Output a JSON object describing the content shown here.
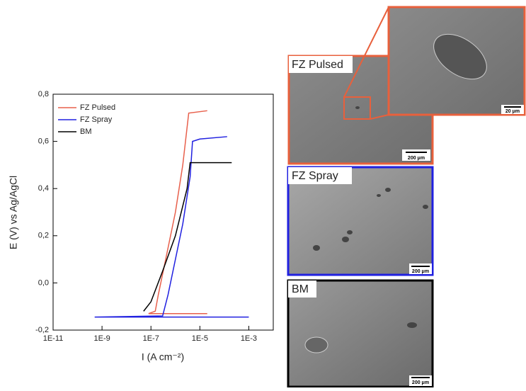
{
  "chart_data": {
    "type": "line",
    "xlabel": "I (A cm⁻²)",
    "ylabel": "E (V) vs Ag/AgCl",
    "xscale": "log",
    "xlim": [
      1e-11,
      0.01
    ],
    "ylim": [
      -0.2,
      0.8
    ],
    "xticks": [
      {
        "value": 1e-11,
        "label": "1E-11"
      },
      {
        "value": 1e-09,
        "label": "1E-9"
      },
      {
        "value": 1e-07,
        "label": "1E-7"
      },
      {
        "value": 1e-05,
        "label": "1E-5"
      },
      {
        "value": 0.001,
        "label": "1E-3"
      }
    ],
    "yticks": [
      {
        "value": -0.2,
        "label": "-0,2"
      },
      {
        "value": 0,
        "label": "0,0"
      },
      {
        "value": 0.2,
        "label": "0,2"
      },
      {
        "value": 0.4,
        "label": "0,4"
      },
      {
        "value": 0.6,
        "label": "0,6"
      },
      {
        "value": 0.8,
        "label": "0,8"
      }
    ],
    "legend": "upper left",
    "series": [
      {
        "name": "FZ Pulsed",
        "color": "#e8604c",
        "x": [
          2e-05,
          8e-08,
          1.5e-07,
          2e-07,
          4e-07,
          1e-06,
          2e-06,
          3.5e-06,
          2e-05
        ],
        "values": [
          -0.13,
          -0.13,
          -0.12,
          -0.05,
          0.1,
          0.3,
          0.5,
          0.72,
          0.73
        ]
      },
      {
        "name": "FZ Spray",
        "color": "#2020e0",
        "x": [
          0.001,
          5e-10,
          3e-07,
          5e-07,
          1e-06,
          2e-06,
          4e-06,
          5e-06,
          1e-05,
          0.00013
        ],
        "values": [
          -0.145,
          -0.145,
          -0.14,
          -0.05,
          0.1,
          0.25,
          0.45,
          0.6,
          0.61,
          0.62
        ]
      },
      {
        "name": "BM",
        "color": "#000000",
        "x": [
          5e-08,
          1e-07,
          3e-07,
          1e-06,
          3e-06,
          4e-06,
          0.0002
        ],
        "values": [
          -0.12,
          -0.08,
          0.05,
          0.2,
          0.4,
          0.51,
          0.51
        ]
      }
    ]
  },
  "panels": [
    {
      "label": "FZ Pulsed",
      "scale": "200 μm",
      "inset_scale": "20 μm"
    },
    {
      "label": "FZ Spray",
      "scale": "200 μm"
    },
    {
      "label": "BM",
      "scale": "200 μm"
    }
  ]
}
